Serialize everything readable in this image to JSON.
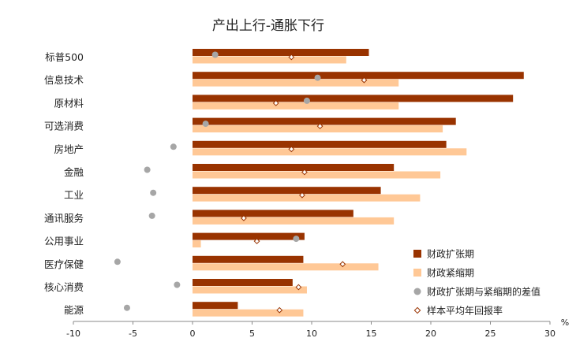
{
  "chart_data": {
    "type": "bar",
    "orientation": "horizontal",
    "title": "产出上行-通胀下行",
    "unit": "%",
    "categories": [
      "标普500",
      "信息技术",
      "原材料",
      "可选消费",
      "房地产",
      "金融",
      "工业",
      "通讯服务",
      "公用事业",
      "医疗保健",
      "核心消费",
      "能源"
    ],
    "series": [
      {
        "name": "财政扩张期",
        "kind": "bar",
        "color": "#993300",
        "values": [
          14.8,
          27.8,
          26.9,
          22.1,
          21.3,
          16.9,
          15.8,
          13.5,
          9.4,
          9.3,
          8.4,
          3.8
        ]
      },
      {
        "name": "财政紧缩期",
        "kind": "bar",
        "color": "#FFC896",
        "values": [
          12.9,
          17.3,
          17.3,
          21.0,
          23.0,
          20.8,
          19.1,
          16.9,
          0.7,
          15.6,
          9.6,
          9.3
        ]
      },
      {
        "name": "财政扩张期与紧缩期的差值",
        "kind": "marker-circle",
        "color": "#A6A6A6",
        "values": [
          1.9,
          10.5,
          9.6,
          1.1,
          -1.6,
          -3.8,
          -3.3,
          -3.4,
          8.7,
          -6.3,
          -1.3,
          -5.5
        ]
      },
      {
        "name": "样本平均年回报率",
        "kind": "marker-diamond",
        "color": "#993300",
        "values": [
          8.3,
          14.4,
          7.0,
          10.7,
          8.3,
          9.4,
          9.2,
          4.3,
          5.4,
          12.6,
          8.9,
          7.3
        ]
      }
    ],
    "xlim": [
      -10,
      30
    ],
    "xticks": [
      -10,
      -5,
      0,
      5,
      10,
      15,
      20,
      25,
      30
    ],
    "grid": false,
    "legend_position": "bottom-right"
  }
}
